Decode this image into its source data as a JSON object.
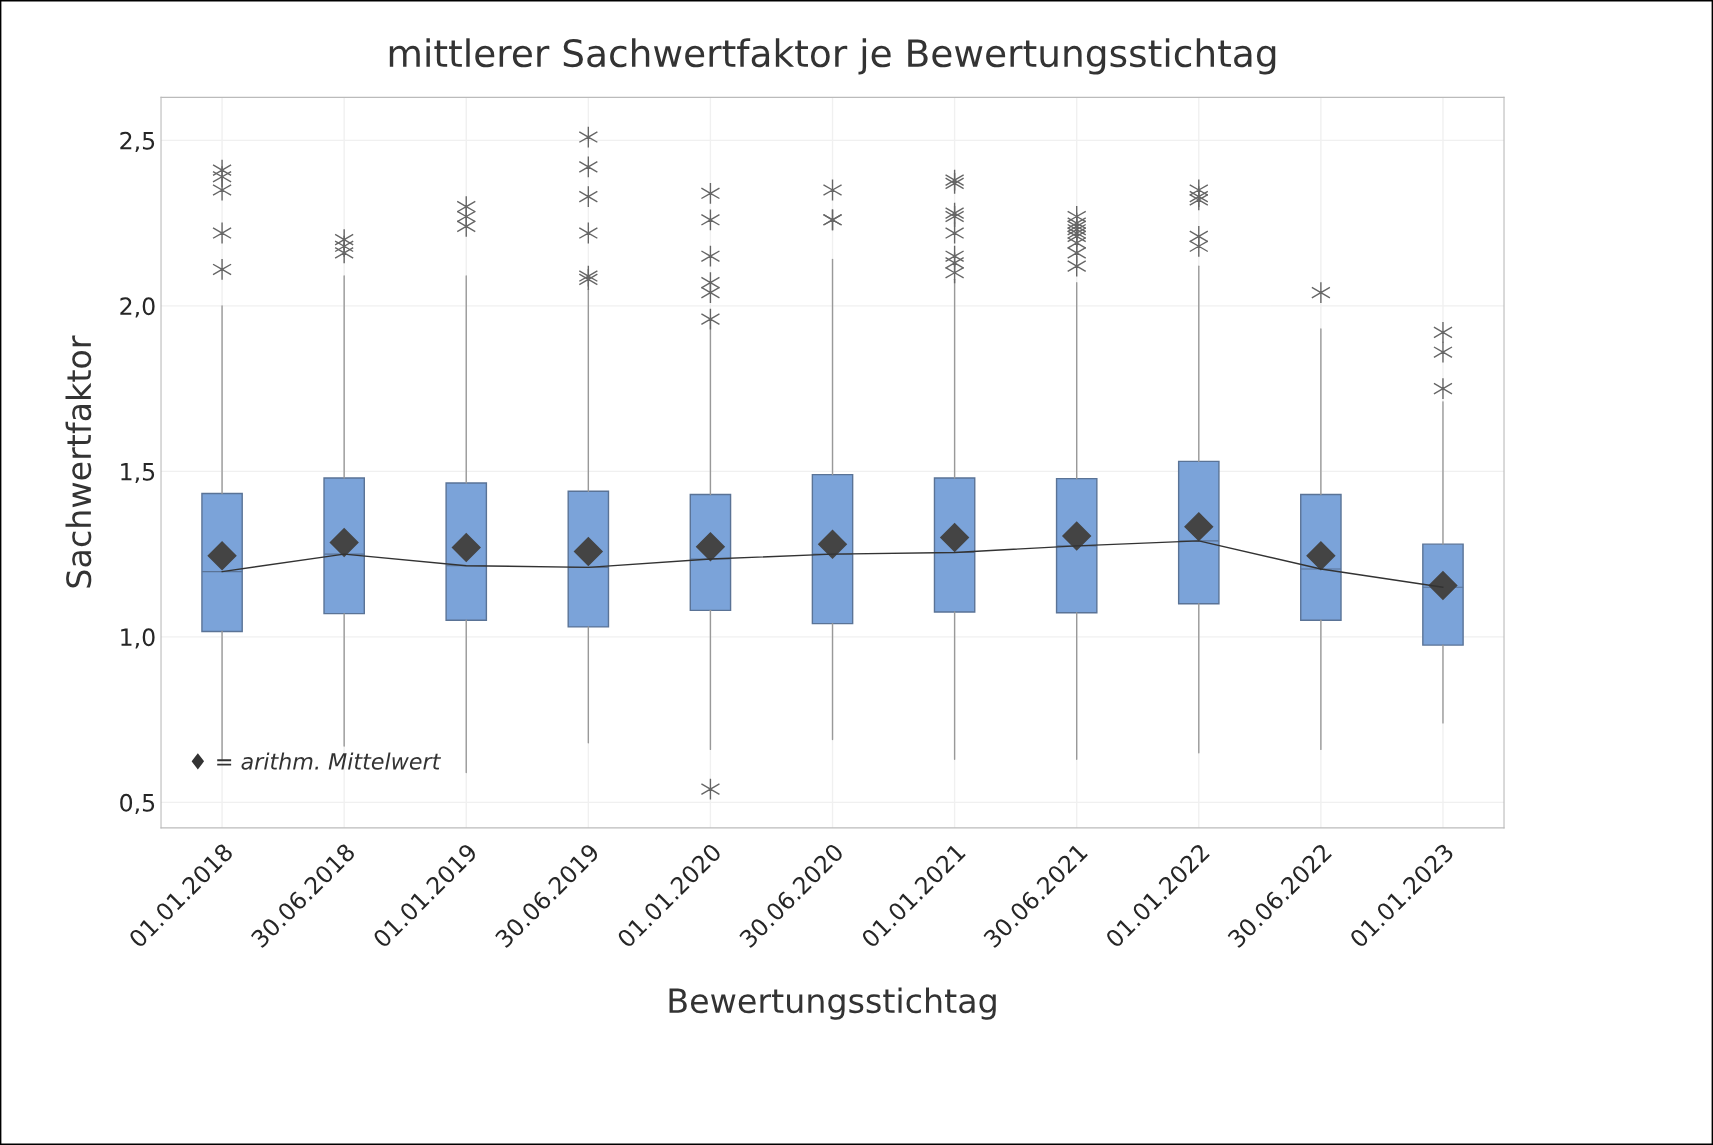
{
  "chart_data": {
    "type": "box",
    "title": "mittlerer Sachwertfaktor je Bewertungsstichtag",
    "xlabel": "Bewertungsstichtag",
    "ylabel": "Sachwertfaktor",
    "categories": [
      "01.01.2018",
      "30.06.2018",
      "01.01.2019",
      "30.06.2019",
      "01.01.2020",
      "30.06.2020",
      "01.01.2021",
      "30.06.2021",
      "01.01.2022",
      "30.06.2022",
      "01.01.2023"
    ],
    "color": "#7ba3d9",
    "boxes": [
      {
        "low": 0.63,
        "q1": 1.016,
        "median": 1.197,
        "q3": 1.433,
        "high": 2.0,
        "mean": 1.245,
        "outliers": [
          2.41,
          2.39,
          2.35,
          2.22,
          2.11
        ]
      },
      {
        "low": 0.67,
        "q1": 1.07,
        "median": 1.25,
        "q3": 1.48,
        "high": 2.09,
        "mean": 1.285,
        "outliers": [
          2.2,
          2.18,
          2.16
        ]
      },
      {
        "low": 0.59,
        "q1": 1.05,
        "median": 1.215,
        "q3": 1.465,
        "high": 2.09,
        "mean": 1.27,
        "outliers": [
          2.3,
          2.27,
          2.24
        ]
      },
      {
        "low": 0.68,
        "q1": 1.03,
        "median": 1.21,
        "q3": 1.44,
        "high": 2.05,
        "mean": 1.258,
        "outliers": [
          2.51,
          2.42,
          2.33,
          2.22,
          2.09,
          2.08
        ]
      },
      {
        "low": 0.66,
        "q1": 1.08,
        "median": 1.235,
        "q3": 1.43,
        "high": 1.96,
        "mean": 1.272,
        "outliers": [
          2.34,
          2.26,
          2.15,
          2.07,
          2.04,
          1.96,
          0.54
        ]
      },
      {
        "low": 0.69,
        "q1": 1.04,
        "median": 1.25,
        "q3": 1.49,
        "high": 2.14,
        "mean": 1.28,
        "outliers": [
          2.35,
          2.26,
          2.26
        ]
      },
      {
        "low": 0.63,
        "q1": 1.075,
        "median": 1.255,
        "q3": 1.48,
        "high": 2.08,
        "mean": 1.3,
        "outliers": [
          2.38,
          2.37,
          2.28,
          2.27,
          2.22,
          2.15,
          2.13,
          2.1
        ]
      },
      {
        "low": 0.63,
        "q1": 1.073,
        "median": 1.275,
        "q3": 1.478,
        "high": 2.07,
        "mean": 1.305,
        "outliers": [
          2.27,
          2.25,
          2.24,
          2.23,
          2.22,
          2.21,
          2.19,
          2.16,
          2.12
        ]
      },
      {
        "low": 0.65,
        "q1": 1.1,
        "median": 1.29,
        "q3": 1.53,
        "high": 2.12,
        "mean": 1.333,
        "outliers": [
          2.35,
          2.33,
          2.32,
          2.21,
          2.18
        ]
      },
      {
        "low": 0.66,
        "q1": 1.05,
        "median": 1.205,
        "q3": 1.43,
        "high": 1.93,
        "mean": 1.245,
        "outliers": [
          2.04
        ]
      },
      {
        "low": 0.74,
        "q1": 0.975,
        "median": 1.15,
        "q3": 1.28,
        "high": 1.71,
        "mean": 1.155,
        "outliers": [
          1.92,
          1.86,
          1.75
        ]
      }
    ],
    "series": [
      {
        "type": "line",
        "color": "#333333",
        "values": [
          1.197,
          1.25,
          1.215,
          1.21,
          1.235,
          1.25,
          1.255,
          1.275,
          1.29,
          1.205,
          1.15
        ]
      }
    ],
    "ylim": [
      0.423,
      2.63
    ],
    "yticks": [
      {
        "value": 0.5,
        "label": "0,5"
      },
      {
        "value": 1.0,
        "label": "1,0"
      },
      {
        "value": 1.5,
        "label": "1,5"
      },
      {
        "value": 2.0,
        "label": "2,0"
      },
      {
        "value": 2.5,
        "label": "2,5"
      }
    ],
    "grid": true,
    "annotations": [
      "♦ = arithm. Mittelwert"
    ]
  }
}
